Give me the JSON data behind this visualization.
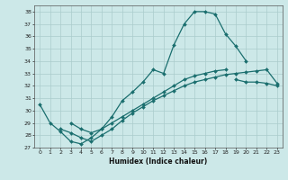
{
  "xlabel": "Humidex (Indice chaleur)",
  "bg_color": "#cce8e8",
  "grid_color": "#aacccc",
  "line_color": "#1a6e6e",
  "xlim": [
    -0.5,
    23.5
  ],
  "ylim": [
    27,
    38.5
  ],
  "yticks": [
    27,
    28,
    29,
    30,
    31,
    32,
    33,
    34,
    35,
    36,
    37,
    38
  ],
  "xticks": [
    0,
    1,
    2,
    3,
    4,
    5,
    6,
    7,
    8,
    9,
    10,
    11,
    12,
    13,
    14,
    15,
    16,
    17,
    18,
    19,
    20,
    21,
    22,
    23
  ],
  "series": [
    {
      "x": [
        0,
        1,
        2,
        3,
        4,
        5,
        6,
        7,
        8,
        9,
        10,
        11,
        12,
        13,
        14,
        15,
        16,
        17,
        18,
        19,
        20
      ],
      "y": [
        30.5,
        29.0,
        28.3,
        27.5,
        27.3,
        27.8,
        28.5,
        29.5,
        30.8,
        31.5,
        32.3,
        33.3,
        33.0,
        35.3,
        37.0,
        38.0,
        38.0,
        37.8,
        36.2,
        35.2,
        34.0
      ]
    },
    {
      "x": [
        19,
        20,
        21,
        22,
        23
      ],
      "y": [
        32.5,
        32.3,
        32.3,
        32.2,
        32.0
      ]
    },
    {
      "x": [
        2,
        3,
        4,
        5,
        6,
        7,
        8,
        9,
        10,
        11,
        12,
        13,
        14,
        15,
        16,
        17,
        18,
        19,
        20,
        21,
        22,
        23
      ],
      "y": [
        28.5,
        28.2,
        27.8,
        27.5,
        28.0,
        28.5,
        29.2,
        29.8,
        30.3,
        30.8,
        31.2,
        31.6,
        32.0,
        32.3,
        32.5,
        32.7,
        32.9,
        33.0,
        33.1,
        33.2,
        33.3,
        32.2
      ]
    },
    {
      "x": [
        3,
        4,
        5,
        6,
        7,
        8,
        9,
        10,
        11,
        12,
        13,
        14,
        15,
        16,
        17,
        18
      ],
      "y": [
        29.0,
        28.5,
        28.2,
        28.5,
        29.0,
        29.5,
        30.0,
        30.5,
        31.0,
        31.5,
        32.0,
        32.5,
        32.8,
        33.0,
        33.2,
        33.3
      ]
    }
  ]
}
